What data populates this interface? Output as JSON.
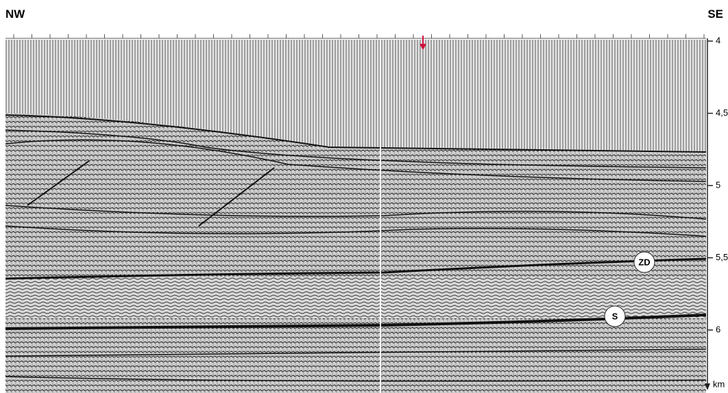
{
  "header": {
    "left": "NW",
    "right": "SE"
  },
  "depth_axis": {
    "ticks": [
      "4",
      "4,5",
      "5",
      "5,5",
      "6"
    ],
    "unit": "km"
  },
  "horizons": [
    {
      "label": "ZD"
    },
    {
      "label": "S"
    }
  ]
}
